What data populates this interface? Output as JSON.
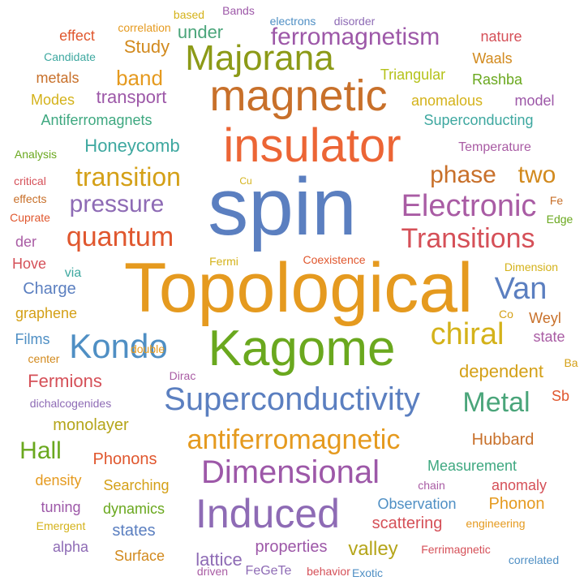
{
  "words": [
    {
      "text": "spin",
      "color": "#5b7fc0"
    },
    {
      "text": "Topological",
      "color": "#e59a1f"
    },
    {
      "text": "Kagome",
      "color": "#6aa81e"
    },
    {
      "text": "insulator",
      "color": "#ec6535"
    },
    {
      "text": "magnetic",
      "color": "#c8702a"
    },
    {
      "text": "Superconductivity",
      "color": "#5b7fc0"
    },
    {
      "text": "Induced",
      "color": "#8e6bb5"
    },
    {
      "text": "Dimensional",
      "color": "#9d58a8"
    },
    {
      "text": "Majorana",
      "color": "#8c9a17"
    },
    {
      "text": "Kondo",
      "color": "#4f8fc4"
    },
    {
      "text": "antiferromagnetic",
      "color": "#e59a1f"
    },
    {
      "text": "Electronic",
      "color": "#a95ca4"
    },
    {
      "text": "Transitions",
      "color": "#d55058"
    },
    {
      "text": "quantum",
      "color": "#e0572e"
    },
    {
      "text": "transition",
      "color": "#d4a017"
    },
    {
      "text": "pressure",
      "color": "#8e6bb5"
    },
    {
      "text": "ferromagnetism",
      "color": "#9d58a8"
    },
    {
      "text": "chiral",
      "color": "#d4b21a"
    },
    {
      "text": "Metal",
      "color": "#4aa57a"
    },
    {
      "text": "phase",
      "color": "#c8702a"
    },
    {
      "text": "two",
      "color": "#d28a1e"
    },
    {
      "text": "Van",
      "color": "#5b7fc0"
    },
    {
      "text": "Hall",
      "color": "#6aa81e"
    },
    {
      "text": "band",
      "color": "#e59a1f"
    },
    {
      "text": "Honeycomb",
      "color": "#3ea8a0"
    },
    {
      "text": "transport",
      "color": "#9d58a8"
    },
    {
      "text": "Study",
      "color": "#d28a1e"
    },
    {
      "text": "under",
      "color": "#4aa57a"
    },
    {
      "text": "Charge",
      "color": "#5b7fc0"
    },
    {
      "text": "dependent",
      "color": "#d4a017"
    },
    {
      "text": "Fermions",
      "color": "#d55058"
    },
    {
      "text": "monolayer",
      "color": "#b5a51a"
    },
    {
      "text": "Hubbard",
      "color": "#c8702a"
    },
    {
      "text": "Phonons",
      "color": "#e0572e"
    },
    {
      "text": "Measurement",
      "color": "#3ea880"
    },
    {
      "text": "Searching",
      "color": "#d4a017"
    },
    {
      "text": "Observation",
      "color": "#4f8fc4"
    },
    {
      "text": "Phonon",
      "color": "#e59a1f"
    },
    {
      "text": "scattering",
      "color": "#d55058"
    },
    {
      "text": "states",
      "color": "#5b7fc0"
    },
    {
      "text": "lattice",
      "color": "#8e6bb5"
    },
    {
      "text": "properties",
      "color": "#9d58a8"
    },
    {
      "text": "valley",
      "color": "#b5a51a"
    },
    {
      "text": "Surface",
      "color": "#d28a1e"
    },
    {
      "text": "dynamics",
      "color": "#6aa81e"
    },
    {
      "text": "tuning",
      "color": "#9d58a8"
    },
    {
      "text": "density",
      "color": "#e59a1f"
    },
    {
      "text": "anomaly",
      "color": "#d55058"
    },
    {
      "text": "alpha",
      "color": "#8e6bb5"
    },
    {
      "text": "graphene",
      "color": "#d4a017"
    },
    {
      "text": "Weyl",
      "color": "#c8702a"
    },
    {
      "text": "state",
      "color": "#a95ca4"
    },
    {
      "text": "Films",
      "color": "#4f8fc4"
    },
    {
      "text": "Triangular",
      "color": "#b5c21a"
    },
    {
      "text": "Rashba",
      "color": "#6aa81e"
    },
    {
      "text": "Waals",
      "color": "#d28a1e"
    },
    {
      "text": "nature",
      "color": "#d55058"
    },
    {
      "text": "anomalous",
      "color": "#d4b21a"
    },
    {
      "text": "model",
      "color": "#9d58a8"
    },
    {
      "text": "Superconducting",
      "color": "#3ea8a0"
    },
    {
      "text": "Temperature",
      "color": "#a95ca4"
    },
    {
      "text": "Antiferromagnets",
      "color": "#3ea880"
    },
    {
      "text": "Modes",
      "color": "#d4b21a"
    },
    {
      "text": "metals",
      "color": "#c8702a"
    },
    {
      "text": "effect",
      "color": "#e0572e"
    },
    {
      "text": "correlation",
      "color": "#e59a1f"
    },
    {
      "text": "based",
      "color": "#d4b21a"
    },
    {
      "text": "Bands",
      "color": "#9d58a8"
    },
    {
      "text": "electrons",
      "color": "#4f8fc4"
    },
    {
      "text": "disorder",
      "color": "#8e6bb5"
    },
    {
      "text": "Candidate",
      "color": "#3ea8a0"
    },
    {
      "text": "Analysis",
      "color": "#6aa81e"
    },
    {
      "text": "critical",
      "color": "#d55058"
    },
    {
      "text": "effects",
      "color": "#c8702a"
    },
    {
      "text": "Cuprate",
      "color": "#e0572e"
    },
    {
      "text": "der",
      "color": "#a95ca4"
    },
    {
      "text": "Hove",
      "color": "#d55058"
    },
    {
      "text": "via",
      "color": "#3ea8a0"
    },
    {
      "text": "Cu",
      "color": "#d4b21a"
    },
    {
      "text": "Fe",
      "color": "#c8702a"
    },
    {
      "text": "Edge",
      "color": "#6aa81e"
    },
    {
      "text": "Fermi",
      "color": "#d4b21a"
    },
    {
      "text": "Coexistence",
      "color": "#e0572e"
    },
    {
      "text": "Dimension",
      "color": "#d4b21a"
    },
    {
      "text": "Co",
      "color": "#d4a017"
    },
    {
      "text": "double",
      "color": "#e59a1f"
    },
    {
      "text": "center",
      "color": "#d28a1e"
    },
    {
      "text": "Dirac",
      "color": "#a95ca4"
    },
    {
      "text": "Ba",
      "color": "#d4a017"
    },
    {
      "text": "Sb",
      "color": "#e0572e"
    },
    {
      "text": "dichalcogenides",
      "color": "#8e6bb5"
    },
    {
      "text": "chain",
      "color": "#a95ca4"
    },
    {
      "text": "engineering",
      "color": "#e59a1f"
    },
    {
      "text": "Emergent",
      "color": "#d4b21a"
    },
    {
      "text": "Ferrimagnetic",
      "color": "#d55058"
    },
    {
      "text": "correlated",
      "color": "#4f8fc4"
    },
    {
      "text": "driven",
      "color": "#a95ca4"
    },
    {
      "text": "FeGeTe",
      "color": "#8e6bb5"
    },
    {
      "text": "behavior",
      "color": "#d55058"
    },
    {
      "text": "Exotic",
      "color": "#4f8fc4"
    }
  ]
}
